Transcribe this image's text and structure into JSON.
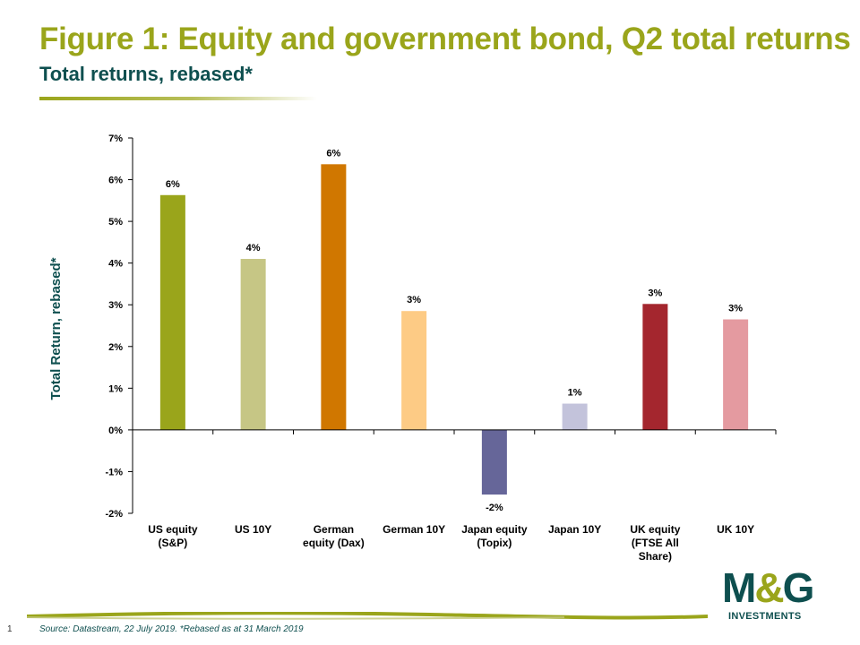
{
  "header": {
    "title": "Figure 1: Equity and government bond, Q2 total returns",
    "subtitle": "Total returns, rebased*"
  },
  "chart_data": {
    "type": "bar",
    "title": "",
    "xlabel": "",
    "ylabel": "Total Return, rebased*",
    "ylim": [
      -2,
      7
    ],
    "yticks": [
      -2,
      -1,
      0,
      1,
      2,
      3,
      4,
      5,
      6,
      7
    ],
    "ytick_labels": [
      "-2%",
      "-1%",
      "0%",
      "1%",
      "2%",
      "3%",
      "4%",
      "5%",
      "6%",
      "7%"
    ],
    "categories": [
      [
        "US equity",
        "(S&P)"
      ],
      [
        "US 10Y"
      ],
      [
        "German",
        "equity (Dax)"
      ],
      [
        "German 10Y"
      ],
      [
        "Japan equity",
        "(Topix)"
      ],
      [
        "Japan 10Y"
      ],
      [
        "UK equity",
        "(FTSE All",
        "Share)"
      ],
      [
        "UK 10Y"
      ]
    ],
    "values": [
      5.63,
      4.1,
      6.37,
      2.85,
      -1.55,
      0.63,
      3.02,
      2.65
    ],
    "data_labels": [
      "6%",
      "4%",
      "6%",
      "3%",
      "-2%",
      "1%",
      "3%",
      "3%"
    ],
    "colors": [
      "#9aa51b",
      "#c6c685",
      "#d07700",
      "#fdcb85",
      "#666699",
      "#c3c3db",
      "#a4262e",
      "#e49aa0"
    ],
    "grid": false,
    "legend": "none"
  },
  "footer": {
    "page_number": "1",
    "source": "Source: Datastream, 22 July 2019. *Rebased as at 31 March 2019"
  },
  "logo": {
    "mark_left": "M",
    "mark_amp": "&",
    "mark_right": "G",
    "tagline": "INVESTMENTS"
  }
}
